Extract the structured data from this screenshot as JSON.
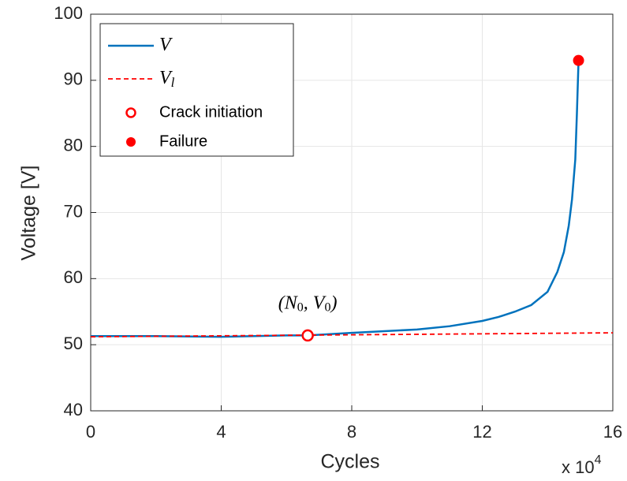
{
  "chart_data": {
    "type": "line",
    "xlabel": "Cycles",
    "ylabel": "Voltage [V]",
    "x_multiplier": "x 10",
    "x_multiplier_exponent": "4",
    "xlim": [
      0,
      16
    ],
    "ylim": [
      40,
      100
    ],
    "xticks": [
      0,
      4,
      8,
      12,
      16
    ],
    "yticks": [
      40,
      50,
      60,
      70,
      80,
      90,
      100
    ],
    "grid": true,
    "legend": "upper left",
    "series": [
      {
        "name": "V",
        "color": "#0072bd",
        "style": "solid",
        "x": [
          0,
          2,
          4,
          6,
          6.65,
          8,
          10,
          11,
          12,
          12.5,
          13,
          13.5,
          14,
          14.3,
          14.5,
          14.65,
          14.75,
          14.85,
          14.9,
          14.95
        ],
        "values": [
          51.3,
          51.3,
          51.2,
          51.4,
          51.4,
          51.8,
          52.3,
          52.8,
          53.6,
          54.2,
          55.0,
          56.0,
          58.0,
          61.0,
          64.0,
          68.0,
          72.0,
          78.0,
          85.0,
          93.0
        ]
      },
      {
        "name": "V",
        "name_subscript": "l",
        "color": "#ff0000",
        "style": "dashed",
        "x": [
          0,
          16
        ],
        "values": [
          51.2,
          51.8
        ]
      }
    ],
    "points": [
      {
        "name": "Crack initiation",
        "x": 6.65,
        "y": 51.4,
        "filled": false,
        "color": "#ff0000"
      },
      {
        "name": "Failure",
        "x": 14.95,
        "y": 93,
        "filled": true,
        "color": "#ff0000"
      }
    ],
    "annotation": {
      "parts": [
        "(N",
        "0",
        ", V",
        "0",
        ")"
      ],
      "x": 6.65,
      "y": 51.4
    }
  }
}
